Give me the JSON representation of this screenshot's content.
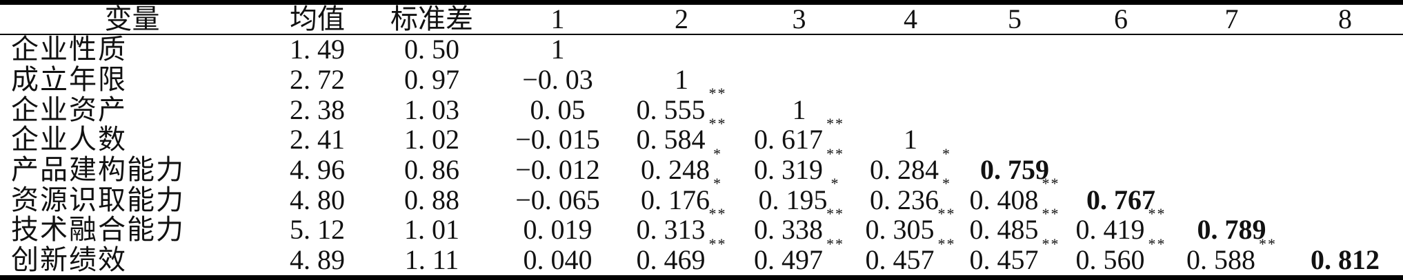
{
  "colors": {
    "text": "#111111",
    "background": "#ffffff",
    "rule": "#000000"
  },
  "table": {
    "columns": [
      "变量",
      "均值",
      "标准差",
      "1",
      "2",
      "3",
      "4",
      "5",
      "6",
      "7",
      "8"
    ],
    "rows": [
      {
        "label": "企业性质",
        "mean": "1. 49",
        "sd": "0. 50",
        "cells": [
          {
            "v": "1"
          },
          null,
          null,
          null,
          null,
          null,
          null,
          null
        ]
      },
      {
        "label": "成立年限",
        "mean": "2. 72",
        "sd": "0. 97",
        "cells": [
          {
            "v": "−0. 03"
          },
          {
            "v": "1"
          },
          null,
          null,
          null,
          null,
          null,
          null
        ]
      },
      {
        "label": "企业资产",
        "mean": "2. 38",
        "sd": "1. 03",
        "cells": [
          {
            "v": "0. 05"
          },
          {
            "v": "0. 555",
            "sig": "**"
          },
          {
            "v": "1"
          },
          null,
          null,
          null,
          null,
          null
        ]
      },
      {
        "label": "企业人数",
        "mean": "2. 41",
        "sd": "1. 02",
        "cells": [
          {
            "v": "−0. 015"
          },
          {
            "v": "0. 584",
            "sig": "**"
          },
          {
            "v": "0. 617",
            "sig": "**"
          },
          {
            "v": "1"
          },
          null,
          null,
          null,
          null
        ]
      },
      {
        "label": "产品建构能力",
        "mean": "4. 96",
        "sd": "0. 86",
        "cells": [
          {
            "v": "−0. 012"
          },
          {
            "v": "0. 248",
            "sig": "*"
          },
          {
            "v": "0. 319",
            "sig": "**"
          },
          {
            "v": "0. 284",
            "sig": "*"
          },
          {
            "v": "0. 759",
            "bold": true
          },
          null,
          null,
          null
        ]
      },
      {
        "label": "资源识取能力",
        "mean": "4. 80",
        "sd": "0. 88",
        "cells": [
          {
            "v": "−0. 065"
          },
          {
            "v": "0. 176",
            "sig": "*"
          },
          {
            "v": "0. 195",
            "sig": "*"
          },
          {
            "v": "0. 236",
            "sig": "*"
          },
          {
            "v": "0. 408",
            "sig": "**"
          },
          {
            "v": "0. 767",
            "bold": true
          },
          null,
          null
        ]
      },
      {
        "label": "技术融合能力",
        "mean": "5. 12",
        "sd": "1. 01",
        "cells": [
          {
            "v": "0. 019"
          },
          {
            "v": "0. 313",
            "sig": "**"
          },
          {
            "v": "0. 338",
            "sig": "**"
          },
          {
            "v": "0. 305",
            "sig": "**"
          },
          {
            "v": "0. 485",
            "sig": "**"
          },
          {
            "v": "0. 419",
            "sig": "**"
          },
          {
            "v": "0. 789",
            "bold": true
          },
          null
        ]
      },
      {
        "label": "创新绩效",
        "mean": "4. 89",
        "sd": "1. 11",
        "cells": [
          {
            "v": "0. 040"
          },
          {
            "v": "0. 469",
            "sig": "**"
          },
          {
            "v": "0. 497",
            "sig": "**"
          },
          {
            "v": "0. 457",
            "sig": "**"
          },
          {
            "v": "0. 457",
            "sig": "**"
          },
          {
            "v": "0. 560",
            "sig": "**"
          },
          {
            "v": "0. 588",
            "sig": "**"
          },
          {
            "v": "0. 812",
            "bold": true
          }
        ]
      }
    ]
  }
}
